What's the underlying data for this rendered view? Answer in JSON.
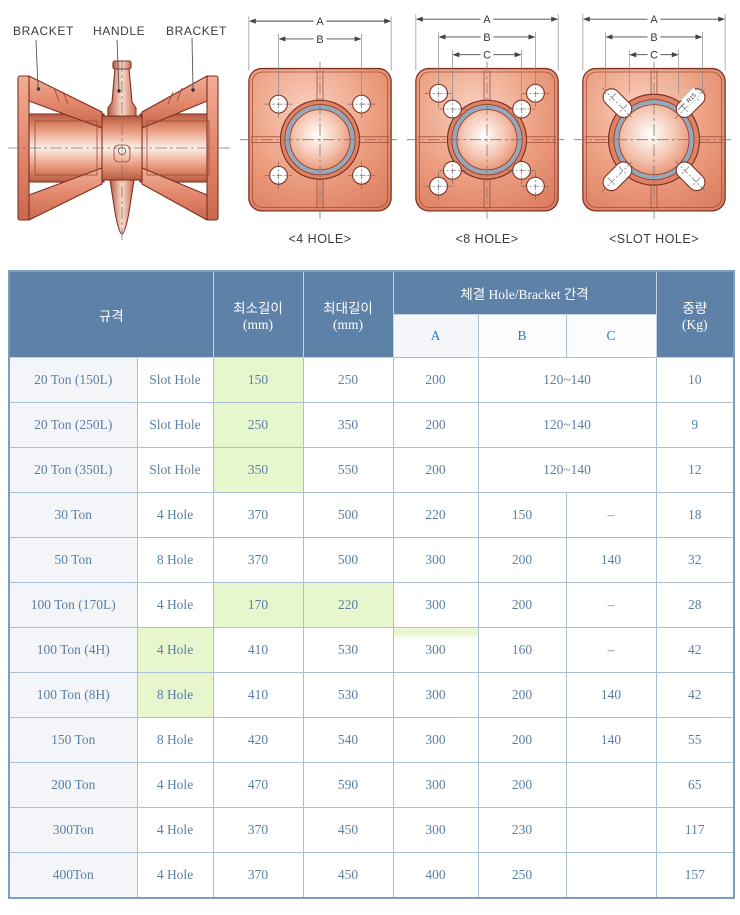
{
  "diagram": {
    "device_labels": {
      "left": "BRACKET",
      "center": "HANDLE",
      "right": "BRACKET"
    },
    "views": [
      {
        "type": "4hole",
        "caption": "<4 HOLE>",
        "dims": [
          "A",
          "B"
        ]
      },
      {
        "type": "8hole",
        "caption": "<8 HOLE>",
        "dims": [
          "A",
          "B",
          "C"
        ]
      },
      {
        "type": "slot",
        "caption": "<SLOT HOLE>",
        "dims": [
          "A",
          "B",
          "C"
        ],
        "radius_label": "R15"
      }
    ],
    "colors": {
      "body": "#E08A6C",
      "outline": "#7E3122",
      "center_ring": "#93A9BB"
    }
  },
  "table": {
    "colors": {
      "header_bg": "#5E81A8",
      "header_text": "#FFFFFF",
      "subheader_text": "#2E77C8",
      "body_text": "#5C7FA6",
      "highlight_green": "#E7F6CD",
      "border": "#A9BFD3",
      "spec_col_bg": "#F3F5F8"
    },
    "header": {
      "spec": "규격",
      "min_l1": "최소길이",
      "min_l2": "(mm)",
      "max_l1": "최대길이",
      "max_l2": "(mm)",
      "group": "체결 Hole/Bracket 간격",
      "a": "A",
      "b": "B",
      "c": "C",
      "weight_l1": "중량",
      "weight_l2": "(Kg)"
    },
    "rows": [
      {
        "cells": [
          {
            "t": "20 Ton (150L)",
            "c": "spec"
          },
          {
            "t": "Slot Hole"
          },
          {
            "t": "150",
            "c": "green"
          },
          {
            "t": "250"
          },
          {
            "t": "200"
          },
          {
            "t": "120~140",
            "cs": 2
          },
          {
            "t": "10"
          }
        ]
      },
      {
        "cells": [
          {
            "t": "20 Ton (250L)",
            "c": "spec"
          },
          {
            "t": "Slot Hole"
          },
          {
            "t": "250",
            "c": "green"
          },
          {
            "t": "350"
          },
          {
            "t": "200"
          },
          {
            "t": "120~140",
            "cs": 2
          },
          {
            "t": "9"
          }
        ]
      },
      {
        "cells": [
          {
            "t": "20 Ton (350L)",
            "c": "spec"
          },
          {
            "t": "Slot Hole"
          },
          {
            "t": "350",
            "c": "green"
          },
          {
            "t": "550"
          },
          {
            "t": "200"
          },
          {
            "t": "120~140",
            "cs": 2
          },
          {
            "t": "12"
          }
        ]
      },
      {
        "cells": [
          {
            "t": "30 Ton",
            "c": "spec"
          },
          {
            "t": "4 Hole"
          },
          {
            "t": "370"
          },
          {
            "t": "500"
          },
          {
            "t": "220"
          },
          {
            "t": "150"
          },
          {
            "t": "–"
          },
          {
            "t": "18"
          }
        ]
      },
      {
        "cells": [
          {
            "t": "50 Ton",
            "c": "spec"
          },
          {
            "t": "8 Hole"
          },
          {
            "t": "370"
          },
          {
            "t": "500"
          },
          {
            "t": "300"
          },
          {
            "t": "200"
          },
          {
            "t": "140"
          },
          {
            "t": "32"
          }
        ]
      },
      {
        "cells": [
          {
            "t": "100 Ton (170L)",
            "c": "spec"
          },
          {
            "t": "4 Hole"
          },
          {
            "t": "170",
            "c": "green"
          },
          {
            "t": "220",
            "c": "green"
          },
          {
            "t": "300"
          },
          {
            "t": "200"
          },
          {
            "t": "–"
          },
          {
            "t": "28"
          }
        ]
      },
      {
        "cells": [
          {
            "t": "100 Ton (4H)",
            "c": "spec"
          },
          {
            "t": "4 Hole",
            "c": "green"
          },
          {
            "t": "410"
          },
          {
            "t": "530"
          },
          {
            "t": "300",
            "c": "gtop"
          },
          {
            "t": "160"
          },
          {
            "t": "–"
          },
          {
            "t": "42"
          }
        ]
      },
      {
        "cells": [
          {
            "t": "100 Ton (8H)",
            "c": "spec"
          },
          {
            "t": "8 Hole",
            "c": "green"
          },
          {
            "t": "410"
          },
          {
            "t": "530"
          },
          {
            "t": "300"
          },
          {
            "t": "200"
          },
          {
            "t": "140"
          },
          {
            "t": "42"
          }
        ]
      },
      {
        "cells": [
          {
            "t": "150 Ton",
            "c": "spec"
          },
          {
            "t": "8 Hole"
          },
          {
            "t": "420"
          },
          {
            "t": "540"
          },
          {
            "t": "300"
          },
          {
            "t": "200"
          },
          {
            "t": "140"
          },
          {
            "t": "55"
          }
        ]
      },
      {
        "cells": [
          {
            "t": "200 Ton",
            "c": "spec"
          },
          {
            "t": "4 Hole"
          },
          {
            "t": "470"
          },
          {
            "t": "590"
          },
          {
            "t": "300"
          },
          {
            "t": "200"
          },
          {
            "t": ""
          },
          {
            "t": "65"
          }
        ]
      },
      {
        "cells": [
          {
            "t": "300Ton",
            "c": "spec"
          },
          {
            "t": "4 Hole"
          },
          {
            "t": "370"
          },
          {
            "t": "450"
          },
          {
            "t": "300"
          },
          {
            "t": "230"
          },
          {
            "t": ""
          },
          {
            "t": "117"
          }
        ]
      },
      {
        "cells": [
          {
            "t": "400Ton",
            "c": "spec"
          },
          {
            "t": "4 Hole"
          },
          {
            "t": "370"
          },
          {
            "t": "450"
          },
          {
            "t": "400"
          },
          {
            "t": "250"
          },
          {
            "t": ""
          },
          {
            "t": "157"
          }
        ]
      }
    ]
  }
}
